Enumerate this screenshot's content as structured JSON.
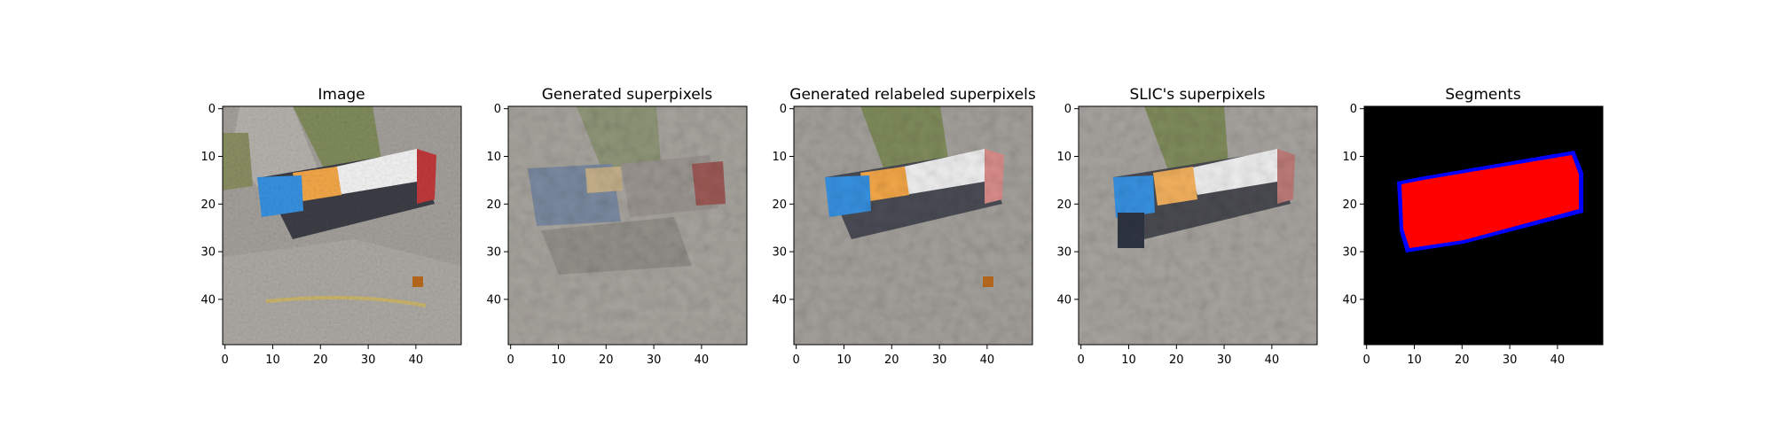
{
  "figure": {
    "panels": [
      {
        "id": "image",
        "title": "Image",
        "kind": "photo"
      },
      {
        "id": "generated",
        "title": "Generated superpixels",
        "kind": "superpixel"
      },
      {
        "id": "relabeled",
        "title": "Generated relabeled superpixels",
        "kind": "relabeled"
      },
      {
        "id": "slic",
        "title": "SLIC's superpixels",
        "kind": "slic"
      },
      {
        "id": "segments",
        "title": "Segments",
        "kind": "segments"
      }
    ],
    "axis": {
      "x_ticks": [
        "0",
        "10",
        "20",
        "30",
        "40"
      ],
      "y_ticks": [
        "0",
        "10",
        "20",
        "30",
        "40"
      ],
      "tick_values": [
        0,
        10,
        20,
        30,
        40
      ],
      "extent": [
        -0.5,
        49.5
      ]
    },
    "colors": {
      "asphalt": "#a39f9b",
      "grass": "#7f8c5c",
      "truck_white": "#f2f2f2",
      "truck_orange": "#f3a748",
      "truck_blue": "#3791e0",
      "truck_dark": "#3c3d46",
      "truck_red": "#c0393b",
      "segment_bg": "#000000",
      "segment_fg": "#ff0000",
      "segment_edge": "#0000ff"
    }
  }
}
